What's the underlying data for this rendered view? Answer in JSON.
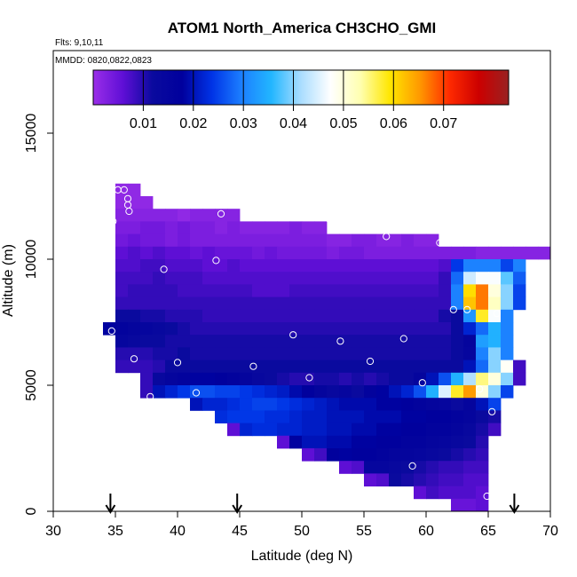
{
  "title": "ATOM1 North_America CH3CHO_GMI",
  "flights_note": "Flts: 9,10,11",
  "dates_note": "MMDD: 0820,0822,0823",
  "chart_data": {
    "type": "heatmap",
    "title": "ATOM1 North_America CH3CHO_GMI",
    "xlabel": "Latitude (deg N)",
    "ylabel": "Altitude (m)",
    "xlim": [
      30,
      70
    ],
    "ylim": [
      0,
      18000
    ],
    "x_ticks": [
      30,
      35,
      40,
      45,
      50,
      55,
      60,
      65,
      70
    ],
    "y_ticks": [
      0,
      5000,
      10000,
      15000
    ],
    "colorbar": {
      "min": 0.0,
      "max": 0.083,
      "ticks": [
        0.01,
        0.02,
        0.03,
        0.04,
        0.05,
        0.06,
        0.07
      ],
      "tick_labels": [
        "0.01",
        "0.02",
        "0.03",
        "0.04",
        "0.05",
        "0.06",
        "0.07"
      ],
      "placement": "top"
    },
    "cell_size": {
      "dlat": 1,
      "dalt": 500
    },
    "bands": [
      {
        "alt": [
          12500,
          13000
        ],
        "lat": [
          35,
          37
        ],
        "v": [
          0.001
        ]
      },
      {
        "alt": [
          12000,
          12500
        ],
        "lat": [
          35,
          38
        ],
        "v": [
          0.001
        ]
      },
      {
        "alt": [
          11500,
          12000
        ],
        "lat": [
          35,
          45
        ],
        "v": [
          0.002,
          0.002,
          0.002,
          0.002,
          0.002,
          0.001,
          0.002,
          0.002,
          0.002,
          0.002
        ]
      },
      {
        "alt": [
          11000,
          11500
        ],
        "lat": [
          35,
          52
        ],
        "v": [
          0.003,
          0.003,
          0.004,
          0.004,
          0.003,
          0.004,
          0.003,
          0.003,
          0.002,
          0.003,
          0.002,
          0.002,
          0.002,
          0.002,
          0.003,
          0.002,
          0.002
        ]
      },
      {
        "alt": [
          10500,
          11000
        ],
        "lat": [
          35,
          61
        ],
        "v": [
          0.004,
          0.005,
          0.004,
          0.004,
          0.003,
          0.004,
          0.003,
          0.003,
          0.003,
          0.003,
          0.003,
          0.003,
          0.003,
          0.003,
          0.003,
          0.003,
          0.003,
          0.002,
          0.002,
          0.003,
          0.003,
          0.002,
          0.002,
          0.003,
          0.002,
          0.002
        ]
      },
      {
        "alt": [
          10000,
          10500
        ],
        "lat": [
          35,
          70
        ],
        "v": [
          0.006,
          0.007,
          0.006,
          0.007,
          0.006,
          0.006,
          0.005,
          0.006,
          0.005,
          0.005,
          0.005,
          0.004,
          0.005,
          0.004,
          0.004,
          0.004,
          0.004,
          0.003,
          0.004,
          0.004,
          0.003,
          0.003,
          0.003,
          0.003,
          0.003,
          0.003,
          0.003,
          0.003,
          0.003,
          0.002,
          0.002,
          0.002,
          0.002,
          0.002,
          0.002
        ]
      },
      {
        "alt": [
          9500,
          10000
        ],
        "lat": [
          35,
          68
        ],
        "v": [
          0.007,
          0.007,
          0.008,
          0.008,
          0.007,
          0.007,
          0.007,
          0.006,
          0.006,
          0.007,
          0.006,
          0.006,
          0.006,
          0.006,
          0.006,
          0.006,
          0.006,
          0.006,
          0.006,
          0.006,
          0.006,
          0.006,
          0.006,
          0.006,
          0.006,
          0.006,
          0.007,
          0.024,
          0.03,
          0.03,
          0.03,
          0.025,
          0.03,
          0.008
        ]
      },
      {
        "alt": [
          9000,
          9500
        ],
        "lat": [
          35,
          68
        ],
        "v": [
          0.008,
          0.008,
          0.008,
          0.009,
          0.008,
          0.008,
          0.008,
          0.007,
          0.007,
          0.007,
          0.007,
          0.007,
          0.007,
          0.007,
          0.007,
          0.007,
          0.007,
          0.007,
          0.007,
          0.007,
          0.007,
          0.007,
          0.007,
          0.007,
          0.007,
          0.007,
          0.009,
          0.028,
          0.044,
          0.047,
          0.047,
          0.038,
          0.027,
          0.008
        ]
      },
      {
        "alt": [
          8500,
          9000
        ],
        "lat": [
          35,
          68
        ],
        "v": [
          0.008,
          0.009,
          0.009,
          0.009,
          0.009,
          0.008,
          0.008,
          0.008,
          0.008,
          0.008,
          0.008,
          0.007,
          0.007,
          0.007,
          0.008,
          0.008,
          0.008,
          0.008,
          0.008,
          0.008,
          0.008,
          0.008,
          0.008,
          0.008,
          0.008,
          0.008,
          0.009,
          0.03,
          0.06,
          0.067,
          0.05,
          0.04,
          0.025,
          0.004
        ]
      },
      {
        "alt": [
          8000,
          8500
        ],
        "lat": [
          35,
          68
        ],
        "v": [
          0.009,
          0.009,
          0.009,
          0.009,
          0.009,
          0.009,
          0.009,
          0.009,
          0.009,
          0.009,
          0.009,
          0.009,
          0.009,
          0.009,
          0.009,
          0.009,
          0.009,
          0.009,
          0.009,
          0.009,
          0.009,
          0.009,
          0.009,
          0.009,
          0.009,
          0.009,
          0.009,
          0.03,
          0.062,
          0.067,
          0.052,
          0.04,
          0.025,
          0.004
        ]
      },
      {
        "alt": [
          7500,
          8000
        ],
        "lat": [
          35,
          67
        ],
        "v": [
          0.012,
          0.012,
          0.011,
          0.011,
          0.01,
          0.01,
          0.01,
          0.009,
          0.009,
          0.009,
          0.009,
          0.009,
          0.009,
          0.009,
          0.009,
          0.009,
          0.009,
          0.009,
          0.009,
          0.009,
          0.009,
          0.009,
          0.009,
          0.009,
          0.009,
          0.009,
          0.011,
          0.012,
          0.032,
          0.058,
          0.047,
          0.03
        ]
      },
      {
        "alt": [
          7000,
          7500
        ],
        "lat": [
          34,
          67
        ],
        "v": [
          0.018,
          0.016,
          0.015,
          0.014,
          0.013,
          0.012,
          0.011,
          0.01,
          0.01,
          0.01,
          0.01,
          0.01,
          0.01,
          0.01,
          0.01,
          0.01,
          0.01,
          0.01,
          0.01,
          0.01,
          0.01,
          0.01,
          0.01,
          0.01,
          0.01,
          0.01,
          0.01,
          0.01,
          0.012,
          0.022,
          0.028,
          0.035,
          0.03
        ]
      },
      {
        "alt": [
          6500,
          7000
        ],
        "lat": [
          35,
          67
        ],
        "v": [
          0.014,
          0.013,
          0.012,
          0.012,
          0.011,
          0.011,
          0.011,
          0.011,
          0.011,
          0.011,
          0.011,
          0.011,
          0.011,
          0.011,
          0.011,
          0.011,
          0.011,
          0.011,
          0.011,
          0.011,
          0.011,
          0.011,
          0.011,
          0.011,
          0.011,
          0.011,
          0.011,
          0.012,
          0.015,
          0.033,
          0.035,
          0.03
        ]
      },
      {
        "alt": [
          6000,
          6500
        ],
        "lat": [
          35,
          67
        ],
        "v": [
          0.01,
          0.01,
          0.01,
          0.011,
          0.011,
          0.012,
          0.011,
          0.011,
          0.011,
          0.011,
          0.011,
          0.011,
          0.011,
          0.011,
          0.011,
          0.011,
          0.011,
          0.011,
          0.011,
          0.011,
          0.011,
          0.011,
          0.011,
          0.011,
          0.011,
          0.011,
          0.011,
          0.012,
          0.014,
          0.03,
          0.04,
          0.03
        ]
      },
      {
        "alt": [
          5500,
          6000
        ],
        "lat": [
          35,
          68
        ],
        "v": [
          0.009,
          0.009,
          0.009,
          0.01,
          0.012,
          0.012,
          0.012,
          0.012,
          0.012,
          0.012,
          0.012,
          0.012,
          0.012,
          0.012,
          0.012,
          0.012,
          0.012,
          0.012,
          0.012,
          0.012,
          0.012,
          0.012,
          0.012,
          0.012,
          0.012,
          0.012,
          0.012,
          0.012,
          0.02,
          0.028,
          0.04,
          0.048,
          0.008
        ]
      },
      {
        "alt": [
          5000,
          5500
        ],
        "lat": [
          37,
          68
        ],
        "v": [
          0.009,
          0.013,
          0.015,
          0.016,
          0.018,
          0.018,
          0.017,
          0.016,
          0.015,
          0.013,
          0.012,
          0.011,
          0.01,
          0.01,
          0.011,
          0.011,
          0.01,
          0.011,
          0.01,
          0.011,
          0.012,
          0.012,
          0.015,
          0.02,
          0.026,
          0.035,
          0.042,
          0.055,
          0.05,
          0.04,
          0.008
        ]
      },
      {
        "alt": [
          4500,
          5000
        ],
        "lat": [
          37,
          67
        ],
        "v": [
          0.009,
          0.02,
          0.022,
          0.024,
          0.026,
          0.026,
          0.025,
          0.025,
          0.024,
          0.023,
          0.022,
          0.021,
          0.019,
          0.017,
          0.015,
          0.013,
          0.014,
          0.012,
          0.016,
          0.018,
          0.02,
          0.022,
          0.026,
          0.035,
          0.045,
          0.058,
          0.065,
          0.05,
          0.04,
          0.025
        ]
      },
      {
        "alt": [
          4000,
          4500
        ],
        "lat": [
          41,
          66
        ],
        "v": [
          0.02,
          0.022,
          0.022,
          0.023,
          0.024,
          0.025,
          0.025,
          0.024,
          0.023,
          0.022,
          0.021,
          0.02,
          0.019,
          0.019,
          0.019,
          0.018,
          0.018,
          0.017,
          0.016,
          0.015,
          0.014,
          0.012,
          0.015,
          0.02,
          0.025
        ]
      },
      {
        "alt": [
          3500,
          4000
        ],
        "lat": [
          43,
          66
        ],
        "v": [
          0.023,
          0.024,
          0.024,
          0.024,
          0.023,
          0.023,
          0.022,
          0.021,
          0.021,
          0.02,
          0.02,
          0.02,
          0.019,
          0.019,
          0.019,
          0.018,
          0.018,
          0.017,
          0.017,
          0.016,
          0.015,
          0.012,
          0.011
        ]
      },
      {
        "alt": [
          3000,
          3500
        ],
        "lat": [
          44,
          66
        ],
        "v": [
          0.006,
          0.022,
          0.023,
          0.023,
          0.022,
          0.022,
          0.021,
          0.021,
          0.02,
          0.02,
          0.019,
          0.019,
          0.018,
          0.018,
          0.017,
          0.017,
          0.016,
          0.016,
          0.015,
          0.013,
          0.011,
          0.008
        ]
      },
      {
        "alt": [
          2500,
          3000
        ],
        "lat": [
          48,
          65
        ],
        "v": [
          0.006,
          0.018,
          0.02,
          0.02,
          0.019,
          0.019,
          0.018,
          0.018,
          0.017,
          0.017,
          0.016,
          0.016,
          0.015,
          0.014,
          0.013,
          0.012,
          0.01
        ]
      },
      {
        "alt": [
          2000,
          2500
        ],
        "lat": [
          50,
          65
        ],
        "v": [
          0.006,
          0.008,
          0.017,
          0.018,
          0.017,
          0.017,
          0.016,
          0.015,
          0.015,
          0.014,
          0.013,
          0.012,
          0.011,
          0.01,
          0.009
        ]
      },
      {
        "alt": [
          1500,
          2000
        ],
        "lat": [
          53,
          65
        ],
        "v": [
          0.006,
          0.007,
          0.014,
          0.014,
          0.013,
          0.012,
          0.011,
          0.01,
          0.009,
          0.009,
          0.008,
          0.008
        ]
      },
      {
        "alt": [
          1000,
          1500
        ],
        "lat": [
          55,
          65
        ],
        "v": [
          0.006,
          0.007,
          0.012,
          0.011,
          0.01,
          0.009,
          0.008,
          0.008,
          0.007,
          0.007
        ]
      },
      {
        "alt": [
          500,
          1000
        ],
        "lat": [
          59,
          65
        ],
        "v": [
          0.006,
          0.008,
          0.007,
          0.007,
          0.007,
          0.006
        ]
      },
      {
        "alt": [
          0,
          500
        ],
        "lat": [
          62,
          65
        ],
        "v": [
          0.005,
          0.005,
          0.006
        ]
      }
    ],
    "flight_points": [
      {
        "lat": 35.2,
        "alt": 12750
      },
      {
        "lat": 35.7,
        "alt": 12750
      },
      {
        "lat": 36.0,
        "alt": 12400
      },
      {
        "lat": 36.0,
        "alt": 12150
      },
      {
        "lat": 36.1,
        "alt": 11900
      },
      {
        "lat": 34.8,
        "alt": 11500
      },
      {
        "lat": 43.5,
        "alt": 11800
      },
      {
        "lat": 52.2,
        "alt": 11600
      },
      {
        "lat": 56.8,
        "alt": 10900
      },
      {
        "lat": 61.1,
        "alt": 10650
      },
      {
        "lat": 69.9,
        "alt": 10900
      },
      {
        "lat": 43.1,
        "alt": 9950
      },
      {
        "lat": 38.9,
        "alt": 9600
      },
      {
        "lat": 62.2,
        "alt": 8000
      },
      {
        "lat": 63.3,
        "alt": 8000
      },
      {
        "lat": 65.7,
        "alt": 7850
      },
      {
        "lat": 34.7,
        "alt": 7150
      },
      {
        "lat": 49.3,
        "alt": 7000
      },
      {
        "lat": 53.1,
        "alt": 6750
      },
      {
        "lat": 58.2,
        "alt": 6850
      },
      {
        "lat": 36.5,
        "alt": 6050
      },
      {
        "lat": 40.0,
        "alt": 5900
      },
      {
        "lat": 46.1,
        "alt": 5750
      },
      {
        "lat": 55.5,
        "alt": 5950
      },
      {
        "lat": 50.6,
        "alt": 5300
      },
      {
        "lat": 59.7,
        "alt": 5100
      },
      {
        "lat": 41.5,
        "alt": 4700
      },
      {
        "lat": 37.8,
        "alt": 4550
      },
      {
        "lat": 64.3,
        "alt": 4850
      },
      {
        "lat": 65.3,
        "alt": 3950
      },
      {
        "lat": 58.9,
        "alt": 1800
      },
      {
        "lat": 64.9,
        "alt": 600
      }
    ],
    "arrow_latitudes": [
      34.6,
      44.8,
      67.1
    ],
    "palette_stops": [
      "#9a2ee8",
      "#5f0fd6",
      "#0a0a9e",
      "#00009d",
      "#0033e6",
      "#1c7fff",
      "#22b6ff",
      "#aaddff",
      "#ffffff",
      "#ffffb0",
      "#ffe600",
      "#ff9900",
      "#ff2a00",
      "#cc0000",
      "#992222"
    ]
  }
}
